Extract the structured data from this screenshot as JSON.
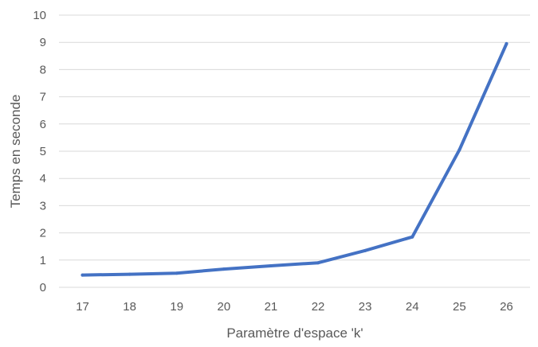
{
  "chart_data": {
    "type": "line",
    "title": "",
    "xlabel": "Paramètre d'espace 'k'",
    "ylabel": "Temps en seconde",
    "categories": [
      "17",
      "18",
      "19",
      "20",
      "21",
      "22",
      "23",
      "24",
      "25",
      "26"
    ],
    "series": [
      {
        "values": [
          0.45,
          0.48,
          0.52,
          0.67,
          0.79,
          0.9,
          1.35,
          1.85,
          5.05,
          8.95
        ],
        "color": "#4472C4"
      }
    ],
    "ylim": [
      0,
      10
    ],
    "yticks": [
      "0",
      "1",
      "2",
      "3",
      "4",
      "5",
      "6",
      "7",
      "8",
      "9",
      "10"
    ],
    "grid": true,
    "gridColor": "#d9d9d9",
    "legend": false
  }
}
